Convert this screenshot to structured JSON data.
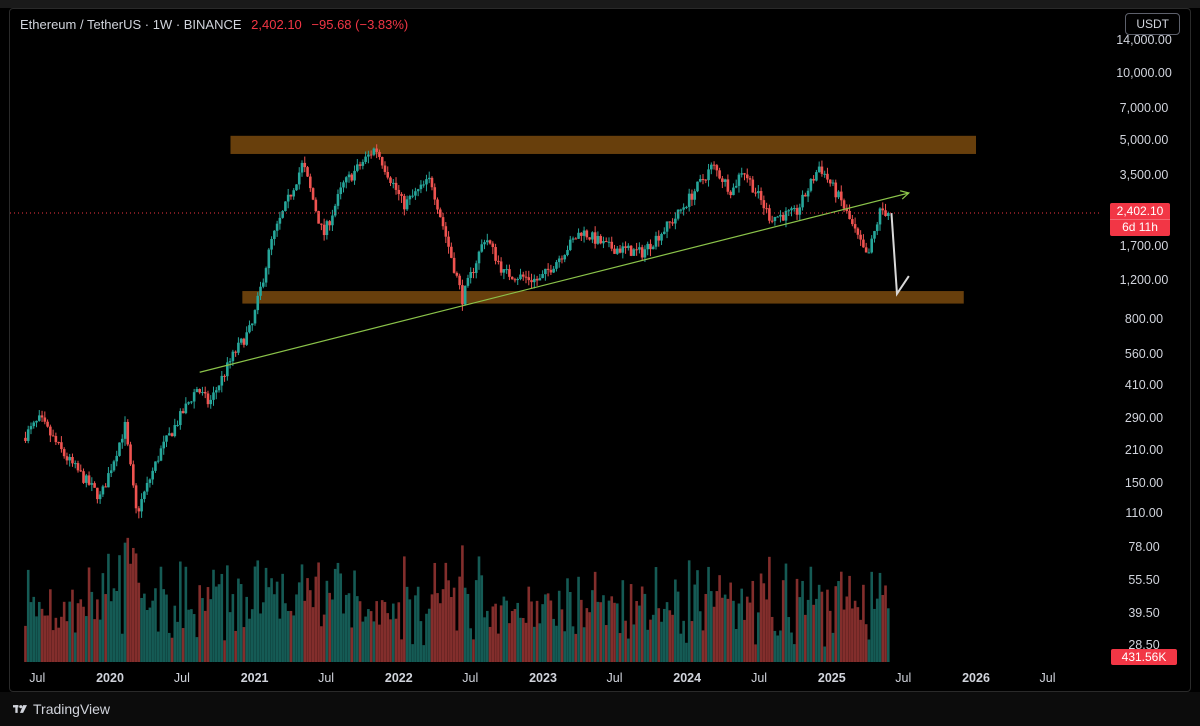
{
  "legend": {
    "symbol": "Ethereum / TetherUS · 1W · BINANCE",
    "price": "2,402.10",
    "change": "−95.68 (−3.83%)"
  },
  "currency_button": "USDT",
  "price_badge": {
    "price": "2,402.10",
    "countdown": "6d 11h"
  },
  "volume_badge": "431.56K",
  "brand": "TradingView",
  "colors": {
    "up": "#26a69a",
    "down": "#ef5350",
    "zone": "#7a4a0e",
    "trendline": "#8bc34a",
    "projection": "#d9d9d9",
    "price_line": "#f23645"
  },
  "icons": [
    "tradingview-logo-icon"
  ],
  "chart_data": {
    "type": "candlestick",
    "interval": "1W",
    "scale": "log",
    "grid": false,
    "y_ticks": [
      "14,000.00",
      "10,000.00",
      "7,000.00",
      "5,000.00",
      "3,500.00",
      "1,700.00",
      "1,200.00",
      "800.00",
      "560.00",
      "410.00",
      "290.00",
      "210.00",
      "150.00",
      "110.00",
      "78.00",
      "55.50",
      "39.50",
      "28.50"
    ],
    "x_ticks": [
      {
        "label": "Jul",
        "bold": false
      },
      {
        "label": "2020",
        "bold": true
      },
      {
        "label": "Jul",
        "bold": false
      },
      {
        "label": "2021",
        "bold": true
      },
      {
        "label": "Jul",
        "bold": false
      },
      {
        "label": "2022",
        "bold": true
      },
      {
        "label": "Jul",
        "bold": false
      },
      {
        "label": "2023",
        "bold": true
      },
      {
        "label": "Jul",
        "bold": false
      },
      {
        "label": "2024",
        "bold": true
      },
      {
        "label": "Jul",
        "bold": false
      },
      {
        "label": "2025",
        "bold": true
      },
      {
        "label": "Jul",
        "bold": false
      },
      {
        "label": "2026",
        "bold": true
      },
      {
        "label": "Jul",
        "bold": false
      }
    ],
    "x_tick_dates": [
      "2019-07-01",
      "2020-01-01",
      "2020-07-01",
      "2021-01-01",
      "2021-07-01",
      "2022-01-01",
      "2022-07-01",
      "2023-01-01",
      "2023-07-01",
      "2024-01-01",
      "2024-07-01",
      "2025-01-01",
      "2025-07-01",
      "2026-01-01",
      "2026-07-01"
    ],
    "price_path": [
      [
        "2019-06-01",
        240
      ],
      [
        "2019-07-15",
        290
      ],
      [
        "2019-09-15",
        200
      ],
      [
        "2019-12-15",
        130
      ],
      [
        "2020-02-15",
        270
      ],
      [
        "2020-03-15",
        110
      ],
      [
        "2020-05-15",
        210
      ],
      [
        "2020-08-15",
        400
      ],
      [
        "2020-09-15",
        340
      ],
      [
        "2020-11-15",
        560
      ],
      [
        "2021-01-01",
        750
      ],
      [
        "2021-02-20",
        1800
      ],
      [
        "2021-05-10",
        4000
      ],
      [
        "2021-07-01",
        1900
      ],
      [
        "2021-08-20",
        3200
      ],
      [
        "2021-11-10",
        4700
      ],
      [
        "2022-01-20",
        2600
      ],
      [
        "2022-03-30",
        3400
      ],
      [
        "2022-06-18",
        1000
      ],
      [
        "2022-08-15",
        1900
      ],
      [
        "2022-10-01",
        1300
      ],
      [
        "2022-12-30",
        1200
      ],
      [
        "2023-04-15",
        2000
      ],
      [
        "2023-06-20",
        1700
      ],
      [
        "2023-09-15",
        1600
      ],
      [
        "2023-12-10",
        2300
      ],
      [
        "2024-03-12",
        3900
      ],
      [
        "2024-05-01",
        3000
      ],
      [
        "2024-05-27",
        3800
      ],
      [
        "2024-08-05",
        2300
      ],
      [
        "2024-10-10",
        2400
      ],
      [
        "2024-12-08",
        3900
      ],
      [
        "2025-02-01",
        2700
      ],
      [
        "2025-04-08",
        1500
      ],
      [
        "2025-05-12",
        2500
      ],
      [
        "2025-05-30",
        2402.1
      ]
    ],
    "zones": [
      {
        "label": "resistance",
        "from": "2020-11-01",
        "to": "2026-01-01",
        "low": 4400,
        "high": 5300
      },
      {
        "label": "support",
        "from": "2020-12-01",
        "to": "2025-12-01",
        "low": 950,
        "high": 1080
      }
    ],
    "trendline": {
      "from": [
        "2020-08-15",
        470
      ],
      "to": [
        "2025-07-15",
        2950
      ]
    },
    "projection": [
      [
        "2025-06-01",
        2400
      ],
      [
        "2025-06-15",
        1050
      ],
      [
        "2025-07-15",
        1260
      ]
    ],
    "last_price": 2402.1
  }
}
